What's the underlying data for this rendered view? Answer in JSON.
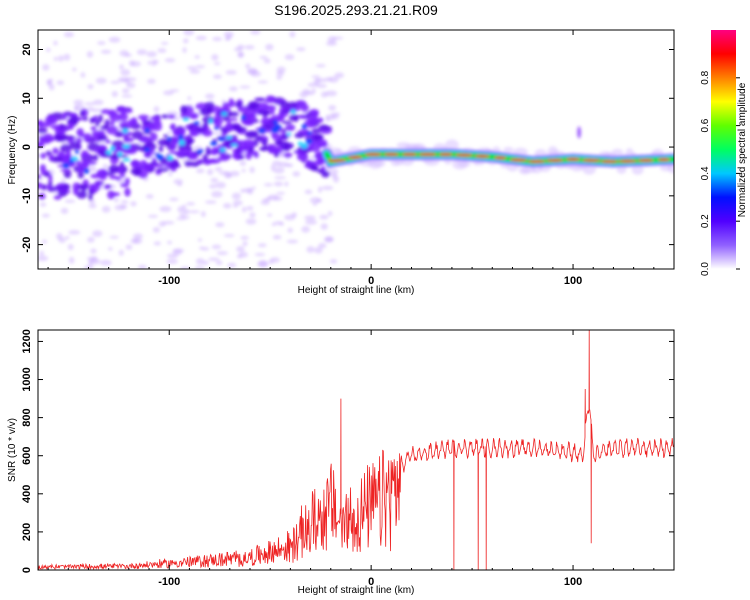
{
  "title": "S196.2025.293.21.21.R09",
  "colors": {
    "ridge_cool": "#7a22ff",
    "ridge_mid": "#22d0ff",
    "ridge_warm": "#00e000",
    "ridge_hot": "#ff2040",
    "snr_line": "#ee2222"
  },
  "chart_data": [
    {
      "type": "heatmap",
      "name": "spectrogram",
      "xlabel": "Height of straight line (km)",
      "ylabel": "Frequency (Hz)",
      "xlim": [
        -165,
        150
      ],
      "ylim": [
        -25,
        24
      ],
      "xticks": [
        -100,
        0,
        100
      ],
      "xtick_labels": [
        "-100",
        "0",
        "100"
      ],
      "yticks": [
        -20,
        -10,
        0,
        10,
        20
      ],
      "ytick_labels": [
        "-20",
        "-10",
        "0",
        "10",
        "20"
      ],
      "grid": false,
      "ridge": {
        "description_points_x": [
          -165,
          -130,
          -100,
          -80,
          -60,
          -40,
          -25,
          -20,
          0,
          20,
          40,
          60,
          80,
          100,
          120,
          150
        ],
        "description_points_y": [
          -2,
          -1,
          1,
          3,
          4,
          4,
          1,
          -3,
          -1.5,
          -1.5,
          -1.5,
          -2,
          -3,
          -2.5,
          -3,
          -2.5
        ]
      },
      "colorbar": {
        "label": "Normalized spectral amplitude",
        "range": [
          0.0,
          1.0
        ],
        "ticks": [
          0.0,
          0.2,
          0.4,
          0.6,
          0.8
        ],
        "tick_labels": [
          "0.0",
          "0.2",
          "0.4",
          "0.6",
          "0.8"
        ],
        "stops": [
          "#ffffff",
          "#9060ff",
          "#5000ff",
          "#0010ff",
          "#00c8ff",
          "#00ff60",
          "#60ff00",
          "#ffff00",
          "#ff8000",
          "#ff0000",
          "#ff0080"
        ]
      }
    },
    {
      "type": "line",
      "name": "snr",
      "xlabel": "Height of straight line (km)",
      "ylabel": "SNR (10 * v/v)",
      "xlim": [
        -165,
        150
      ],
      "ylim": [
        0,
        1260
      ],
      "xticks": [
        -100,
        0,
        100
      ],
      "xtick_labels": [
        "-100",
        "0",
        "100"
      ],
      "yticks": [
        0,
        200,
        400,
        600,
        800,
        1000,
        1200
      ],
      "ytick_labels": [
        "0",
        "200",
        "400",
        "600",
        "800",
        "1000",
        "1200"
      ],
      "grid": false,
      "series": [
        {
          "name": "SNR",
          "envelope_x": [
            -165,
            -120,
            -60,
            -40,
            -30,
            -20,
            -15,
            0,
            10,
            20,
            40,
            60,
            80,
            100,
            105,
            108,
            110,
            120,
            150
          ],
          "envelope_y": [
            20,
            25,
            80,
            150,
            300,
            420,
            300,
            400,
            500,
            600,
            640,
            640,
            640,
            620,
            600,
            900,
            600,
            640,
            640
          ],
          "spikes": [
            {
              "x": -15,
              "y": 900
            },
            {
              "x": 41,
              "y": 0
            },
            {
              "x": 53,
              "y": 0
            },
            {
              "x": 57,
              "y": 0
            },
            {
              "x": 106,
              "y": 950
            },
            {
              "x": 108,
              "y": 1260
            },
            {
              "x": 109,
              "y": 140
            }
          ]
        }
      ]
    }
  ]
}
